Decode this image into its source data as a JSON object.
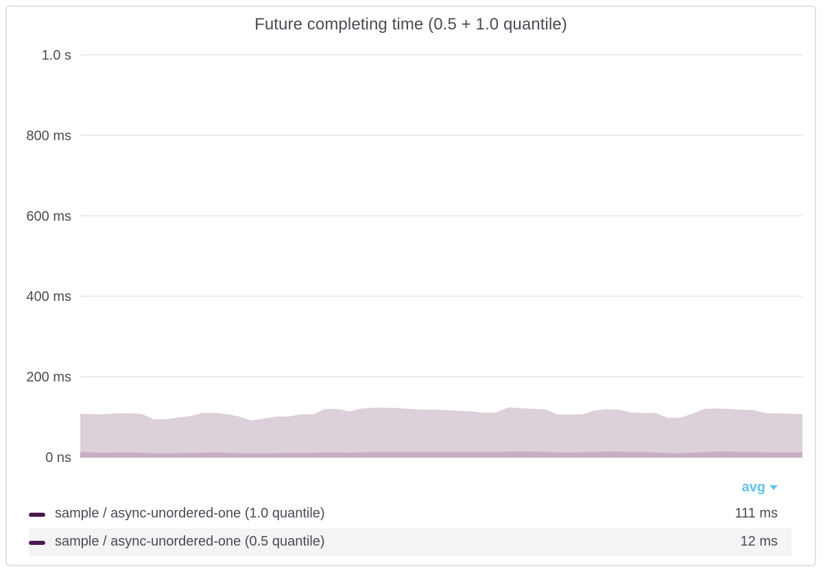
{
  "chart_data": {
    "type": "area",
    "title": "Future completing time (0.5 + 1.0 quantile)",
    "y_ticks": [
      "0 ns",
      "200 ms",
      "400 ms",
      "600 ms",
      "800 ms",
      "1.0 s"
    ],
    "ylim": [
      0,
      1000
    ],
    "y_unit": "ms",
    "grid": true,
    "legend_placement": "bottom",
    "legend_column_header": "avg",
    "series": [
      {
        "name": "sample / async-unordered-one (1.0 quantile)",
        "avg_label": "111 ms",
        "color": "#4b1a4e",
        "fill": "#dcd0da",
        "values": [
          108,
          107,
          107,
          109,
          109,
          108,
          94,
          94,
          99,
          102,
          110,
          110,
          107,
          101,
          91,
          96,
          101,
          101,
          107,
          106,
          120,
          120,
          114,
          121,
          123,
          123,
          122,
          120,
          118,
          118,
          117,
          115,
          114,
          110,
          111,
          124,
          122,
          120,
          119,
          106,
          106,
          106,
          116,
          119,
          118,
          111,
          110,
          110,
          98,
          98,
          108,
          120,
          121,
          120,
          118,
          117,
          109,
          109,
          108,
          107
        ]
      },
      {
        "name": "sample / async-unordered-one (0.5 quantile)",
        "avg_label": "12 ms",
        "color": "#4b1a4e",
        "fill": "#c8aec4",
        "values": [
          13,
          12,
          11,
          12,
          12,
          11,
          10,
          10,
          10,
          11,
          11,
          12,
          11,
          10,
          10,
          10,
          10,
          11,
          11,
          11,
          12,
          12,
          11,
          12,
          13,
          13,
          13,
          13,
          13,
          13,
          13,
          13,
          13,
          13,
          13,
          14,
          14,
          14,
          13,
          12,
          12,
          12,
          13,
          14,
          14,
          13,
          13,
          12,
          10,
          10,
          11,
          13,
          14,
          14,
          13,
          13,
          12,
          12,
          12,
          12
        ]
      }
    ]
  }
}
